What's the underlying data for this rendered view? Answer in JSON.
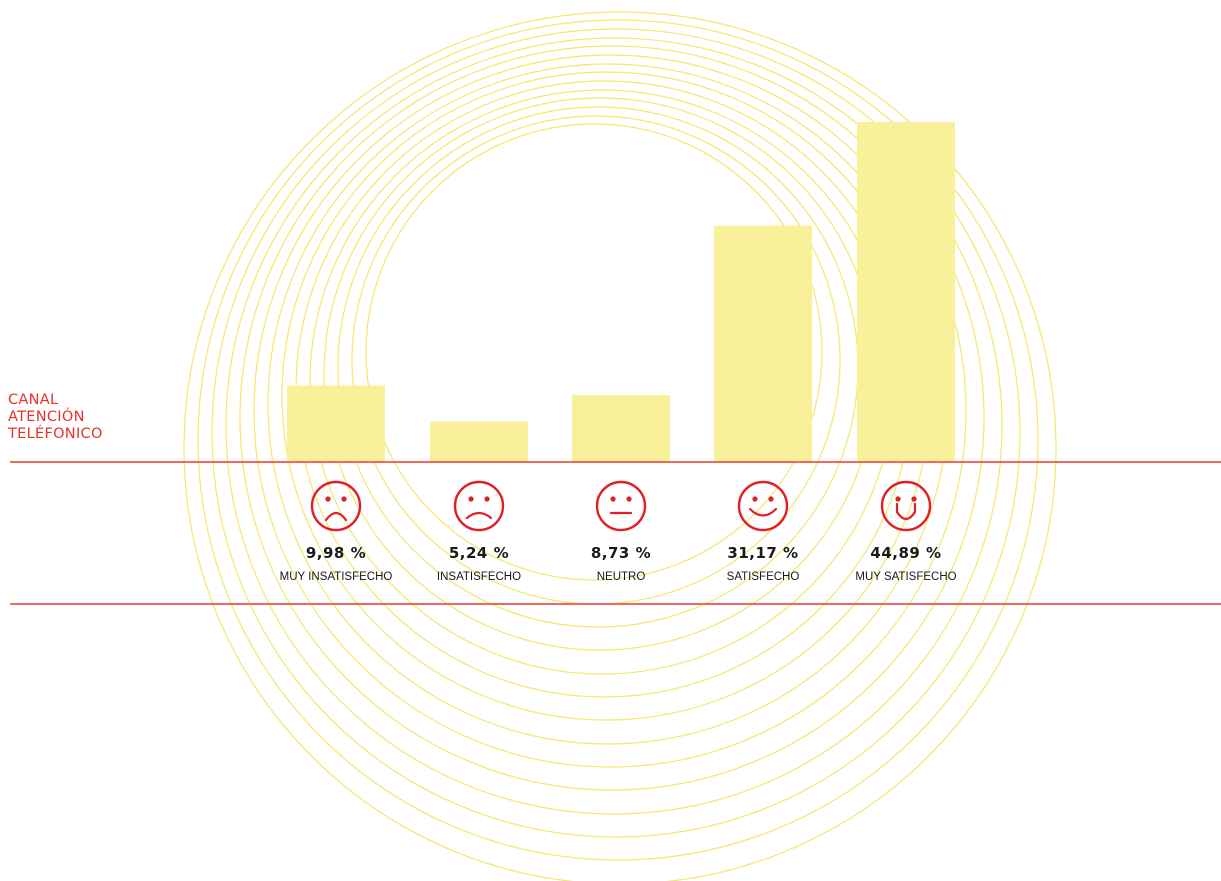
{
  "side_title": [
    "CANAL",
    "ATENCIÓN",
    "TELÉFONICO"
  ],
  "colors": {
    "bar": "#f8f19a",
    "rings": "#f5e66a",
    "rule": "#ee6a5a",
    "face": "#e01f26",
    "title": "#e8312b"
  },
  "icons": [
    "very-sad-face-icon",
    "sad-face-icon",
    "neutral-face-icon",
    "happy-face-icon",
    "very-happy-face-icon"
  ],
  "chart_data": {
    "type": "bar",
    "categories": [
      "MUY INSATISFECHO",
      "INSATISFECHO",
      "NEUTRO",
      "SATISFECHO",
      "MUY SATISFECHO"
    ],
    "values": [
      9.98,
      5.24,
      8.73,
      31.17,
      44.89
    ],
    "value_labels": [
      "9,98 %",
      "5,24 %",
      "8,73 %",
      "31,17 %",
      "44,89 %"
    ],
    "title": "",
    "xlabel": "",
    "ylabel": "",
    "ylim": [
      0,
      44.89
    ],
    "grid": false
  }
}
